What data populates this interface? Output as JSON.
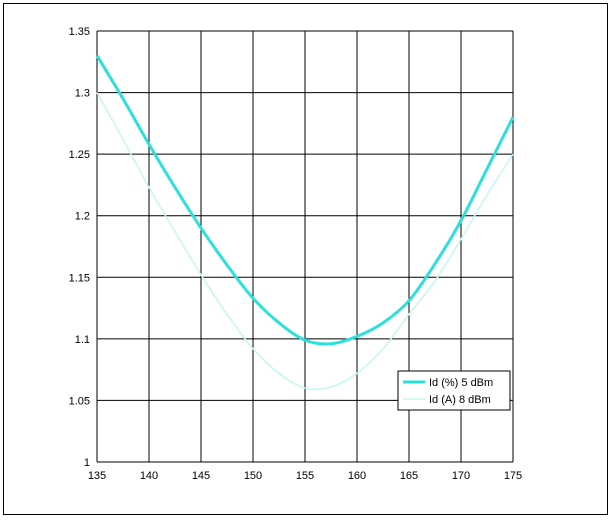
{
  "chart_data": {
    "type": "line",
    "title": "",
    "xlabel": "",
    "ylabel": "",
    "xlim": [
      135,
      175
    ],
    "ylim": [
      1,
      1.35
    ],
    "x_ticks": [
      "135",
      "140",
      "145",
      "150",
      "155",
      "160",
      "165",
      "170",
      "175"
    ],
    "y_ticks": [
      "1",
      "1.05",
      "1.1",
      "1.15",
      "1.2",
      "1.25",
      "1.3",
      "1.35"
    ],
    "grid": true,
    "legend_position": "bottom-right",
    "series": [
      {
        "name": "Id (%) 5 dBm",
        "color": "#2de0dc",
        "x": [
          135,
          137.5,
          140,
          142.5,
          145,
          147.5,
          150,
          152.5,
          155,
          157.5,
          160,
          162.5,
          165,
          167.5,
          170,
          172.5,
          175
        ],
        "y": [
          1.33,
          1.295,
          1.258,
          1.223,
          1.19,
          1.16,
          1.133,
          1.113,
          1.099,
          1.096,
          1.102,
          1.113,
          1.131,
          1.161,
          1.196,
          1.238,
          1.28
        ]
      },
      {
        "name": "Id (A) 8 dBm",
        "color": "#c8f6f4",
        "x": [
          135,
          137.5,
          140,
          142.5,
          145,
          147.5,
          150,
          152.5,
          155,
          157.5,
          160,
          162.5,
          165,
          167.5,
          170,
          172.5,
          175
        ],
        "y": [
          1.3,
          1.262,
          1.223,
          1.187,
          1.152,
          1.12,
          1.092,
          1.072,
          1.06,
          1.061,
          1.072,
          1.092,
          1.12,
          1.147,
          1.181,
          1.217,
          1.25
        ]
      }
    ]
  }
}
